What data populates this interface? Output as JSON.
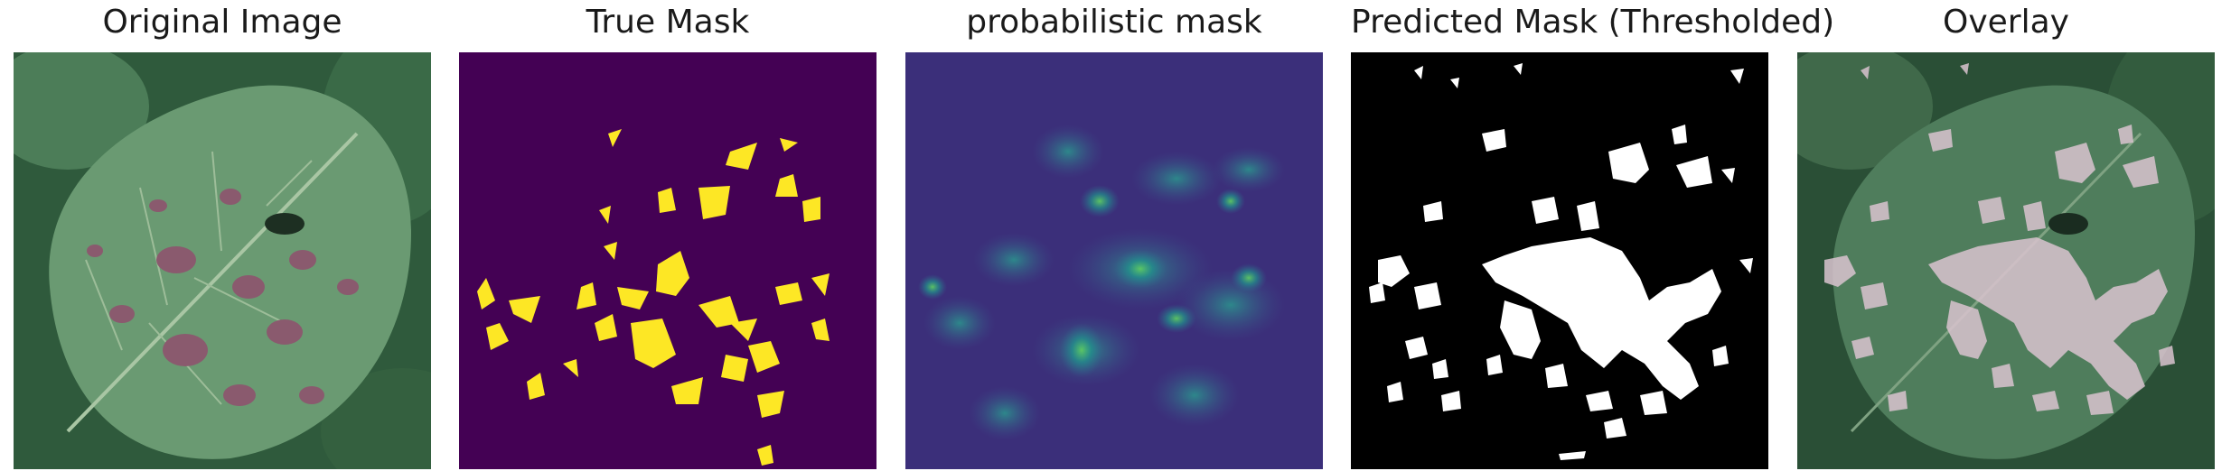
{
  "figure": {
    "panels": [
      {
        "title": "Original Image",
        "content": "leaf-photo"
      },
      {
        "title": "True Mask",
        "content": "ground-truth-mask"
      },
      {
        "title": "probabilistic mask",
        "content": "probability-heatmap"
      },
      {
        "title": "Predicted Mask (Thresholded)",
        "content": "binary-mask"
      },
      {
        "title": "Overlay",
        "content": "mask-overlay"
      }
    ]
  },
  "colors": {
    "leaf_green": "#5e8f66",
    "leaf_dark": "#3c6348",
    "lesion_purple": "#8a5a6e",
    "background_leaves": "#2f5a3c",
    "mask_background": "#440154",
    "mask_foreground": "#fde725",
    "heatmap_low": "#3b2f7a",
    "heatmap_mid": "#2a788e",
    "heatmap_high": "#5ec962",
    "binary_black": "#000000",
    "binary_white": "#ffffff",
    "overlay_lesion": "#d9c3cf"
  }
}
